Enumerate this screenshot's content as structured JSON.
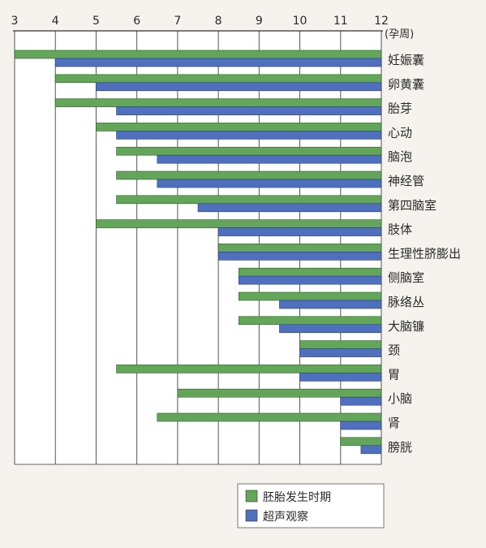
{
  "chart_data": {
    "type": "bar",
    "orientation": "horizontal",
    "x_tick_labels": [
      "3",
      "4",
      "5",
      "6",
      "7",
      "8",
      "9",
      "10",
      "11",
      "12"
    ],
    "x_unit_label": "(孕周)",
    "xlim": [
      3,
      12
    ],
    "categories": [
      "妊娠囊",
      "卵黄囊",
      "胎芽",
      "心动",
      "脑泡",
      "神经管",
      "第四脑室",
      "肢体",
      "生理性脐膨出",
      "侧脑室",
      "脉络丛",
      "大脑镰",
      "颈",
      "胃",
      "小脑",
      "肾",
      "膀胱"
    ],
    "series": [
      {
        "name": "胚胎发生时期",
        "color": "#63a65a",
        "ranges": [
          [
            3,
            12
          ],
          [
            4,
            12
          ],
          [
            4,
            12
          ],
          [
            5,
            12
          ],
          [
            5.5,
            12
          ],
          [
            5.5,
            12
          ],
          [
            5.5,
            12
          ],
          [
            5,
            12
          ],
          [
            8,
            12
          ],
          [
            8.5,
            12
          ],
          [
            8.5,
            12
          ],
          [
            8.5,
            12
          ],
          [
            10,
            12
          ],
          [
            5.5,
            12
          ],
          [
            7,
            12
          ],
          [
            6.5,
            12
          ],
          [
            11,
            12
          ]
        ]
      },
      {
        "name": "超声观察",
        "color": "#4f6fbf",
        "ranges": [
          [
            4,
            12
          ],
          [
            5,
            12
          ],
          [
            5.5,
            12
          ],
          [
            5.5,
            12
          ],
          [
            6.5,
            12
          ],
          [
            6.5,
            12
          ],
          [
            7.5,
            12
          ],
          [
            8,
            12
          ],
          [
            8,
            12
          ],
          [
            8.5,
            12
          ],
          [
            9.5,
            12
          ],
          [
            9.5,
            12
          ],
          [
            10,
            12
          ],
          [
            10,
            12
          ],
          [
            11,
            12
          ],
          [
            11,
            12
          ],
          [
            11.5,
            12
          ]
        ]
      }
    ],
    "grid": true,
    "legend_position": "bottom-right"
  },
  "colors": {
    "background": "#f6f3ee",
    "plot_background": "#ffffff",
    "axis": "#333333",
    "grid": "#555555"
  }
}
